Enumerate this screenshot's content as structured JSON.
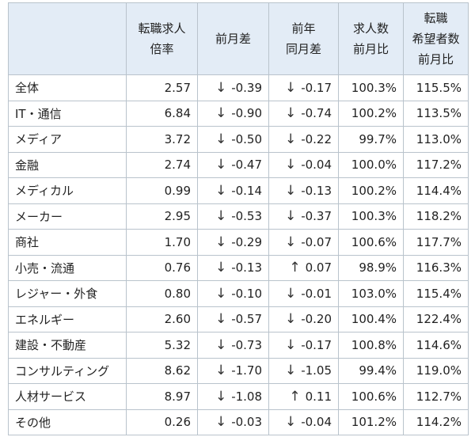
{
  "table": {
    "headers": [
      {
        "lines": [
          ""
        ]
      },
      {
        "lines": [
          "転職求人",
          "倍率"
        ]
      },
      {
        "lines": [
          "前月差"
        ]
      },
      {
        "lines": [
          "前年",
          "同月差"
        ]
      },
      {
        "lines": [
          "求人数",
          "前月比"
        ]
      },
      {
        "lines": [
          "転職",
          "希望者数",
          "前月比"
        ]
      }
    ],
    "rows": [
      {
        "name": "全体",
        "ratio": "2.57",
        "mom_arrow": "↓",
        "mom": "-0.39",
        "yoy_arrow": "↓",
        "yoy": "-0.17",
        "jobs": "100.3%",
        "seekers": "115.5%"
      },
      {
        "name": "IT・通信",
        "ratio": "6.84",
        "mom_arrow": "↓",
        "mom": "-0.90",
        "yoy_arrow": "↓",
        "yoy": "-0.74",
        "jobs": "100.2%",
        "seekers": "113.5%"
      },
      {
        "name": "メディア",
        "ratio": "3.72",
        "mom_arrow": "↓",
        "mom": "-0.50",
        "yoy_arrow": "↓",
        "yoy": "-0.22",
        "jobs": "99.7%",
        "seekers": "113.0%"
      },
      {
        "name": "金融",
        "ratio": "2.74",
        "mom_arrow": "↓",
        "mom": "-0.47",
        "yoy_arrow": "↓",
        "yoy": "-0.04",
        "jobs": "100.0%",
        "seekers": "117.2%"
      },
      {
        "name": "メディカル",
        "ratio": "0.99",
        "mom_arrow": "↓",
        "mom": "-0.14",
        "yoy_arrow": "↓",
        "yoy": "-0.13",
        "jobs": "100.2%",
        "seekers": "114.4%"
      },
      {
        "name": "メーカー",
        "ratio": "2.95",
        "mom_arrow": "↓",
        "mom": "-0.53",
        "yoy_arrow": "↓",
        "yoy": "-0.37",
        "jobs": "100.3%",
        "seekers": "118.2%"
      },
      {
        "name": "商社",
        "ratio": "1.70",
        "mom_arrow": "↓",
        "mom": "-0.29",
        "yoy_arrow": "↓",
        "yoy": "-0.07",
        "jobs": "100.6%",
        "seekers": "117.7%"
      },
      {
        "name": "小売・流通",
        "ratio": "0.76",
        "mom_arrow": "↓",
        "mom": "-0.13",
        "yoy_arrow": "↑",
        "yoy": "0.07",
        "jobs": "98.9%",
        "seekers": "116.3%"
      },
      {
        "name": "レジャー・外食",
        "ratio": "0.80",
        "mom_arrow": "↓",
        "mom": "-0.10",
        "yoy_arrow": "↓",
        "yoy": "-0.01",
        "jobs": "103.0%",
        "seekers": "115.4%"
      },
      {
        "name": "エネルギー",
        "ratio": "2.60",
        "mom_arrow": "↓",
        "mom": "-0.57",
        "yoy_arrow": "↓",
        "yoy": "-0.20",
        "jobs": "100.4%",
        "seekers": "122.4%"
      },
      {
        "name": "建設・不動産",
        "ratio": "5.32",
        "mom_arrow": "↓",
        "mom": "-0.73",
        "yoy_arrow": "↓",
        "yoy": "-0.17",
        "jobs": "100.8%",
        "seekers": "114.6%"
      },
      {
        "name": "コンサルティング",
        "ratio": "8.62",
        "mom_arrow": "↓",
        "mom": "-1.70",
        "yoy_arrow": "↓",
        "yoy": "-1.05",
        "jobs": "99.4%",
        "seekers": "119.0%"
      },
      {
        "name": "人材サービス",
        "ratio": "8.97",
        "mom_arrow": "↓",
        "mom": "-1.08",
        "yoy_arrow": "↑",
        "yoy": "0.11",
        "jobs": "100.6%",
        "seekers": "112.7%"
      },
      {
        "name": "その他",
        "ratio": "0.26",
        "mom_arrow": "↓",
        "mom": "-0.03",
        "yoy_arrow": "↓",
        "yoy": "-0.04",
        "jobs": "101.2%",
        "seekers": "114.2%"
      }
    ]
  }
}
